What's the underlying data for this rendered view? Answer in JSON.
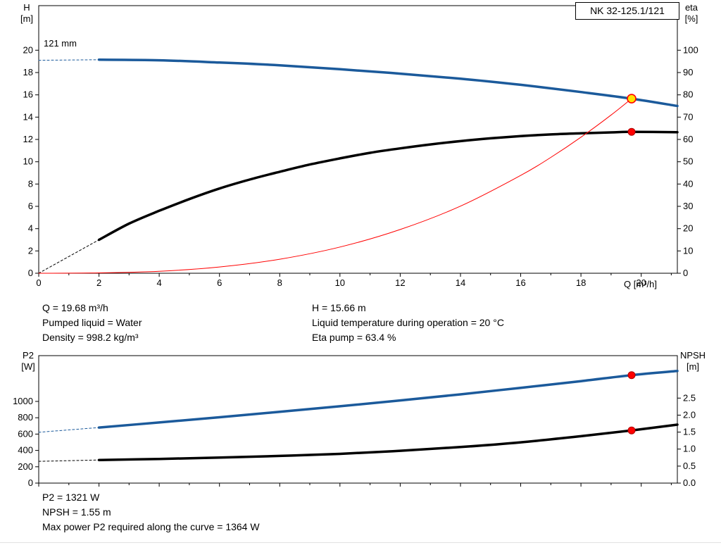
{
  "header": {
    "model_label": "NK 32-125.1/121"
  },
  "duty_point": {
    "Q": 19.68,
    "H": 15.66,
    "eta_percent": 63.4,
    "P2_W": 1321,
    "NPSH_m": 1.55
  },
  "info_panel": {
    "left": [
      "Q = 19.68 m³/h",
      "Pumped liquid = Water",
      "Density = 998.2 kg/m³"
    ],
    "right": [
      "H = 15.66 m",
      "Liquid temperature during operation = 20 °C",
      "Eta pump = 63.4 %"
    ]
  },
  "footer_panel": {
    "lines": [
      "P2 = 1321 W",
      "NPSH = 1.55 m",
      "Max power P2 required along the curve = 1364 W"
    ]
  },
  "colors": {
    "curve_blue": "#1b5a9b",
    "curve_black": "#000000",
    "curve_red": "#ff0000",
    "duty_yellow": "#ffe100",
    "frame": "#000000"
  },
  "chart_data": [
    {
      "type": "line",
      "name": "qh-efficiency-chart",
      "curve_label": "121 mm",
      "axes": {
        "x": {
          "label": "Q [m³/h]",
          "min": 0,
          "max": 21.2,
          "minor_step": 1,
          "ticks": [
            {
              "v": 0,
              "label": "0"
            },
            {
              "v": 2,
              "label": "2"
            },
            {
              "v": 4,
              "label": "4"
            },
            {
              "v": 6,
              "label": "6"
            },
            {
              "v": 8,
              "label": "8"
            },
            {
              "v": 10,
              "label": "10"
            },
            {
              "v": 12,
              "label": "12"
            },
            {
              "v": 14,
              "label": "14"
            },
            {
              "v": 16,
              "label": "16"
            },
            {
              "v": 18,
              "label": "18"
            },
            {
              "v": 20,
              "label": "20"
            }
          ]
        },
        "y_left": {
          "title_lines": [
            "H",
            "[m]"
          ],
          "min": 0,
          "max": 24,
          "ticks": [
            {
              "v": 0,
              "label": "0"
            },
            {
              "v": 2,
              "label": "2"
            },
            {
              "v": 4,
              "label": "4"
            },
            {
              "v": 6,
              "label": "6"
            },
            {
              "v": 8,
              "label": "8"
            },
            {
              "v": 10,
              "label": "10"
            },
            {
              "v": 12,
              "label": "12"
            },
            {
              "v": 14,
              "label": "14"
            },
            {
              "v": 16,
              "label": "16"
            },
            {
              "v": 18,
              "label": "18"
            },
            {
              "v": 20,
              "label": "20"
            }
          ]
        },
        "y_right": {
          "title_lines": [
            "eta",
            "[%]"
          ],
          "min": 0,
          "max": 120,
          "ticks": [
            {
              "v": 0,
              "label": "0"
            },
            {
              "v": 10,
              "label": "10"
            },
            {
              "v": 20,
              "label": "20"
            },
            {
              "v": 30,
              "label": "30"
            },
            {
              "v": 40,
              "label": "40"
            },
            {
              "v": 50,
              "label": "50"
            },
            {
              "v": 60,
              "label": "60"
            },
            {
              "v": 70,
              "label": "70"
            },
            {
              "v": 80,
              "label": "80"
            },
            {
              "v": 90,
              "label": "90"
            },
            {
              "v": 100,
              "label": "100"
            }
          ]
        }
      },
      "series": [
        {
          "name": "head-curve-extension",
          "axis": "left",
          "color": "#1b5a9b",
          "width": 1,
          "dash": "3 3",
          "points": [
            [
              0,
              19.1
            ],
            [
              2,
              19.15
            ]
          ]
        },
        {
          "name": "head-curve",
          "axis": "left",
          "color": "#1b5a9b",
          "width": 3.5,
          "points": [
            [
              2,
              19.15
            ],
            [
              4,
              19.1
            ],
            [
              6,
              18.9
            ],
            [
              8,
              18.65
            ],
            [
              10,
              18.3
            ],
            [
              12,
              17.9
            ],
            [
              14,
              17.45
            ],
            [
              16,
              16.9
            ],
            [
              18,
              16.25
            ],
            [
              19.68,
              15.66
            ],
            [
              21.2,
              15.0
            ]
          ]
        },
        {
          "name": "efficiency-curve-extension",
          "axis": "left",
          "color": "#000000",
          "width": 1,
          "dash": "3 3",
          "points": [
            [
              0,
              0
            ],
            [
              2,
              3.0
            ]
          ]
        },
        {
          "name": "efficiency-curve",
          "axis": "left",
          "color": "#000000",
          "width": 3.5,
          "points": [
            [
              2,
              3.0
            ],
            [
              3,
              4.45
            ],
            [
              4,
              5.6
            ],
            [
              5,
              6.65
            ],
            [
              6,
              7.6
            ],
            [
              7,
              8.4
            ],
            [
              8,
              9.1
            ],
            [
              9,
              9.75
            ],
            [
              10,
              10.3
            ],
            [
              11,
              10.8
            ],
            [
              12,
              11.2
            ],
            [
              13,
              11.55
            ],
            [
              14,
              11.85
            ],
            [
              15,
              12.1
            ],
            [
              16,
              12.3
            ],
            [
              17,
              12.45
            ],
            [
              18,
              12.55
            ],
            [
              19,
              12.63
            ],
            [
              19.68,
              12.68
            ],
            [
              21.2,
              12.65
            ]
          ]
        },
        {
          "name": "system-curve",
          "axis": "left",
          "color": "#ff0000",
          "width": 1,
          "points": [
            [
              0,
              0
            ],
            [
              2,
              0.03
            ],
            [
              4,
              0.18
            ],
            [
              6,
              0.56
            ],
            [
              8,
              1.26
            ],
            [
              10,
              2.35
            ],
            [
              12,
              3.92
            ],
            [
              14,
              6.02
            ],
            [
              16,
              8.77
            ],
            [
              17,
              10.39
            ],
            [
              18,
              12.2
            ],
            [
              19,
              14.19
            ],
            [
              19.68,
              15.66
            ]
          ]
        }
      ],
      "markers": [
        {
          "name": "duty-point-head",
          "axis": "left",
          "x": 19.68,
          "y": 15.66,
          "r": 6,
          "fill": "#ffe100",
          "stroke": "#ff0000",
          "stroke_width": 1.6
        },
        {
          "name": "duty-point-efficiency",
          "axis": "left",
          "x": 19.68,
          "y": 12.68,
          "r": 5,
          "fill": "#ff0000",
          "stroke": "#b00000",
          "stroke_width": 1
        }
      ]
    },
    {
      "type": "line",
      "name": "power-npsh-chart",
      "axes": {
        "x": {
          "label": "",
          "min": 0,
          "max": 21.2,
          "minor_step": 1,
          "ticks": [
            {
              "v": 0
            },
            {
              "v": 2
            },
            {
              "v": 4
            },
            {
              "v": 6
            },
            {
              "v": 8
            },
            {
              "v": 10
            },
            {
              "v": 12
            },
            {
              "v": 14
            },
            {
              "v": 16
            },
            {
              "v": 18
            },
            {
              "v": 20
            }
          ]
        },
        "y_left": {
          "title_lines": [
            "P2",
            "[W]"
          ],
          "min": 0,
          "max": 1560,
          "ticks": [
            {
              "v": 0,
              "label": "0"
            },
            {
              "v": 200,
              "label": "200"
            },
            {
              "v": 400,
              "label": "400"
            },
            {
              "v": 600,
              "label": "600"
            },
            {
              "v": 800,
              "label": "800"
            },
            {
              "v": 1000,
              "label": "1000"
            }
          ]
        },
        "y_right": {
          "title_lines": [
            "NPSH",
            "[m]"
          ],
          "min": 0,
          "max": 3.75,
          "ticks": [
            {
              "v": 0,
              "label": "0.0"
            },
            {
              "v": 0.5,
              "label": "0.5"
            },
            {
              "v": 1,
              "label": "1.0"
            },
            {
              "v": 1.5,
              "label": "1.5"
            },
            {
              "v": 2,
              "label": "2.0"
            },
            {
              "v": 2.5,
              "label": "2.5"
            }
          ]
        }
      },
      "series": [
        {
          "name": "p2-curve-extension",
          "axis": "left",
          "color": "#1b5a9b",
          "width": 1,
          "dash": "3 3",
          "points": [
            [
              0,
              622
            ],
            [
              2,
              680
            ]
          ]
        },
        {
          "name": "p2-curve",
          "axis": "left",
          "color": "#1b5a9b",
          "width": 3.5,
          "points": [
            [
              2,
              680
            ],
            [
              4,
              742
            ],
            [
              6,
              806
            ],
            [
              8,
              872
            ],
            [
              10,
              940
            ],
            [
              12,
              1012
            ],
            [
              14,
              1086
            ],
            [
              16,
              1166
            ],
            [
              18,
              1248
            ],
            [
              19.68,
              1321
            ],
            [
              21.2,
              1372
            ]
          ]
        },
        {
          "name": "npsh-curve-extension",
          "axis": "right",
          "color": "#000000",
          "width": 1,
          "dash": "3 3",
          "points": [
            [
              0,
              0.64
            ],
            [
              2,
              0.68
            ]
          ]
        },
        {
          "name": "npsh-curve",
          "axis": "right",
          "color": "#000000",
          "width": 3.5,
          "points": [
            [
              2,
              0.68
            ],
            [
              4,
              0.71
            ],
            [
              6,
              0.75
            ],
            [
              8,
              0.8
            ],
            [
              10,
              0.86
            ],
            [
              12,
              0.95
            ],
            [
              14,
              1.06
            ],
            [
              16,
              1.2
            ],
            [
              18,
              1.38
            ],
            [
              19.68,
              1.55
            ],
            [
              21.2,
              1.72
            ]
          ]
        }
      ],
      "markers": [
        {
          "name": "duty-point-p2",
          "axis": "left",
          "x": 19.68,
          "y": 1321,
          "r": 5,
          "fill": "#ff0000",
          "stroke": "#b00000",
          "stroke_width": 1
        },
        {
          "name": "duty-point-npsh",
          "axis": "right",
          "x": 19.68,
          "y": 1.55,
          "r": 5,
          "fill": "#ff0000",
          "stroke": "#b00000",
          "stroke_width": 1
        }
      ]
    }
  ]
}
